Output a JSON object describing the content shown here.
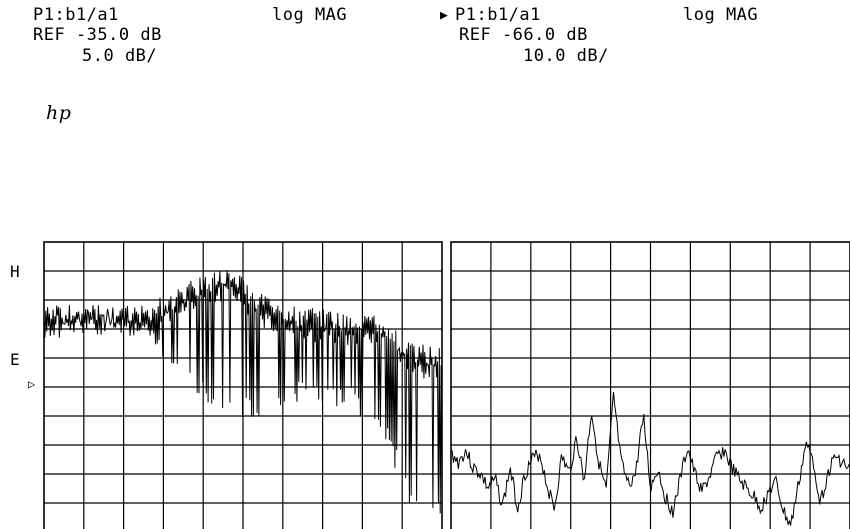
{
  "header": {
    "left": {
      "measure": "P1:b1/a1",
      "format": "log MAG",
      "ref": "REF -35.0 dB",
      "scale": "5.0 dB/"
    },
    "right": {
      "marker": "▶",
      "measure": "P1:b1/a1",
      "format": "log MAG",
      "ref": "REF -66.0 dB",
      "scale": "10.0 dB/"
    },
    "logo": "hp"
  },
  "side_marks": {
    "H": "H",
    "E": "E",
    "ref_arrow": "▷"
  },
  "chart_data": [
    {
      "type": "line",
      "title": "P1:b1/a1 log MAG",
      "reference_level_db": -35.0,
      "scale_db_per_div": 5.0,
      "grid": true,
      "x_divisions": 10,
      "y_divisions": 10,
      "reference_division_from_top": 5,
      "envelope_upper_div_from_top": [
        2.2,
        2.1,
        2.2,
        2.2,
        1.8,
        1.2,
        0.8,
        1.7,
        2.2,
        2.3,
        2.4,
        2.5,
        3.5,
        3.6
      ],
      "envelope_lower_div_from_top": [
        3.4,
        3.2,
        3.0,
        3.2,
        4.2,
        5.5,
        6.2,
        6.0,
        5.6,
        5.5,
        5.8,
        6.5,
        9.3,
        9.6
      ]
    },
    {
      "type": "line",
      "title": "P1:b1/a1 log MAG",
      "reference_level_db": -66.0,
      "scale_db_per_div": 10.0,
      "grid": true,
      "x_divisions": 10,
      "y_divisions": 10,
      "trace_div_from_top": [
        7.3,
        7.6,
        7.2,
        7.8,
        8.0,
        8.5,
        8.2,
        9.1,
        7.8,
        9.2,
        8.0,
        7.5,
        7.3,
        8.4,
        9.2,
        7.4,
        8.0,
        6.7,
        8.3,
        5.8,
        7.6,
        8.6,
        5.3,
        7.6,
        8.4,
        8.0,
        5.9,
        8.5,
        7.8,
        8.8,
        9.3,
        8.2,
        7.1,
        8.0,
        8.6,
        8.1,
        7.4,
        7.2,
        7.8,
        8.2,
        8.5,
        8.8,
        9.2,
        8.6,
        8.3,
        9.3,
        9.8,
        8.4,
        7.0,
        7.5,
        9.0,
        8.0,
        7.4,
        7.6,
        7.9
      ]
    }
  ]
}
